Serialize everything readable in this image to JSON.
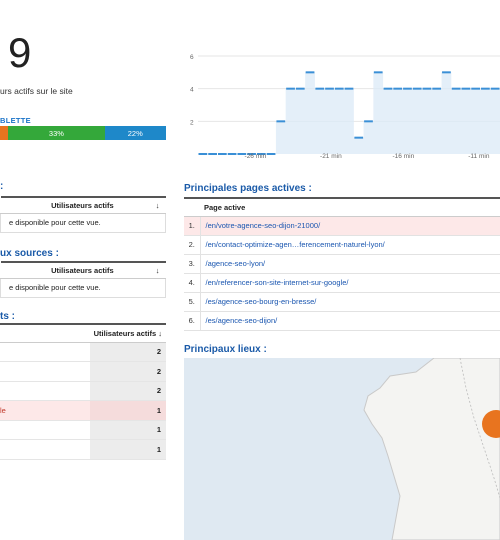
{
  "overview": {
    "active_users_number": "9",
    "active_users_text": "urs actifs sur le site"
  },
  "devices": {
    "label_fragment": "BLETTE",
    "segments": [
      {
        "label": "",
        "value": 4,
        "color": "#e8741f"
      },
      {
        "label": "33%",
        "value": 33,
        "color": "#34a83a"
      },
      {
        "label": "22%",
        "value": 22,
        "color": "#1e88c9"
      }
    ]
  },
  "chart_data": {
    "type": "area",
    "x_tick_labels": [
      "-26 min",
      "-21 min",
      "-16 min",
      "-11 min"
    ],
    "y_tick_labels": [
      "2",
      "4",
      "6"
    ],
    "ylim": [
      0,
      6
    ],
    "grid": true,
    "series": [
      {
        "color": "#3a8fd6",
        "values": [
          0,
          0,
          0,
          0,
          0,
          0,
          0,
          0,
          2,
          4,
          4,
          5,
          4,
          4,
          4,
          4,
          1,
          2,
          5,
          4,
          4,
          4,
          4,
          4,
          4,
          5,
          4,
          4,
          4,
          4,
          4
        ]
      }
    ]
  },
  "users_box": {
    "title": ":",
    "column": "Utilisateurs actifs",
    "sort_icon": "↓",
    "message": "e disponible pour cette vue."
  },
  "sources_box": {
    "title": "ux sources :",
    "column": "Utilisateurs actifs",
    "sort_icon": "↓",
    "message": "e disponible pour cette vue."
  },
  "active_pages": {
    "title": "Principales pages actives :",
    "column": "Page active",
    "rows": [
      {
        "num": "1.",
        "url": "/en/votre-agence-seo-dijon-21000/",
        "highlight": true
      },
      {
        "num": "2.",
        "url": "/en/contact-optimize-agen…ferencement-naturel-lyon/",
        "highlight": false
      },
      {
        "num": "3.",
        "url": "/agence-seo-lyon/",
        "highlight": false
      },
      {
        "num": "4.",
        "url": "/en/referencer-son-site-internet-sur-google/",
        "highlight": false
      },
      {
        "num": "5.",
        "url": "/es/agence-seo-bourg-en-bresse/",
        "highlight": false
      },
      {
        "num": "6.",
        "url": "/es/agence-seo-dijon/",
        "highlight": false
      }
    ]
  },
  "events_box": {
    "title": "ts :",
    "column": "Utilisateurs actifs",
    "sort_icon": "↓",
    "rows": [
      {
        "label": "",
        "value": "2",
        "highlight": false
      },
      {
        "label": "",
        "value": "2",
        "highlight": false
      },
      {
        "label": "",
        "value": "2",
        "highlight": false
      },
      {
        "label": "le",
        "value": "1",
        "highlight": true
      },
      {
        "label": "",
        "value": "1",
        "highlight": false
      },
      {
        "label": "",
        "value": "1",
        "highlight": false
      }
    ]
  },
  "locations": {
    "title": "Principaux lieux :",
    "marker_color": "#e8741f"
  }
}
